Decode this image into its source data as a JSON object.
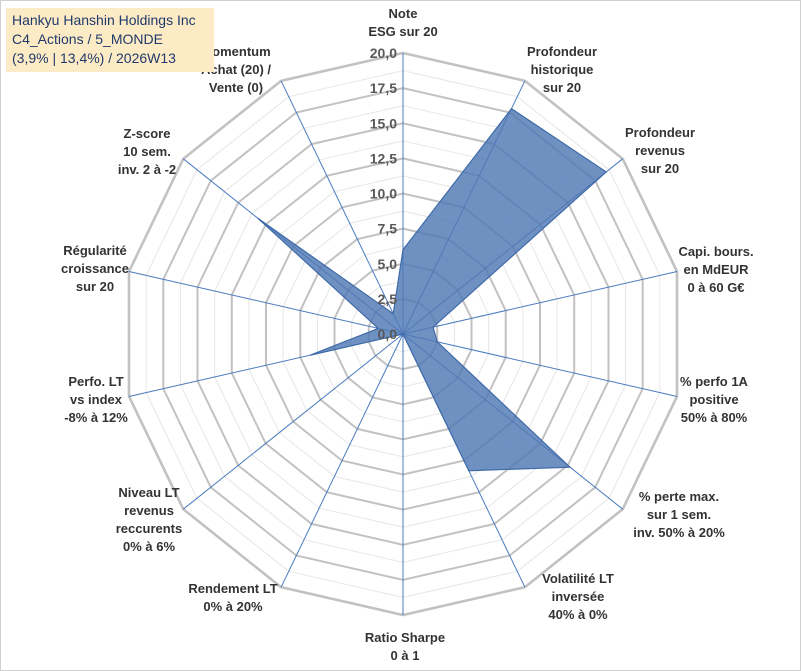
{
  "title_box": {
    "line1": "Hankyu Hanshin Holdings Inc",
    "line2": "C4_Actions / 5_MONDE",
    "line3": "(3,9% | 13,4%) / 2026W13"
  },
  "chart_data": {
    "type": "radar",
    "title": "Hankyu Hanshin Holdings Inc",
    "rlim": [
      0,
      20
    ],
    "ticks": [
      "0,0",
      "2,5",
      "5,0",
      "7,5",
      "10,0",
      "12,5",
      "15,0",
      "17,5",
      "20,0"
    ],
    "grid": true,
    "fill_color": "#4f79b5",
    "grid_color": "#c8c8c8",
    "axis_line_color": "#4a7bc0",
    "categories": [
      {
        "lines": [
          "Note",
          "ESG sur 20"
        ]
      },
      {
        "lines": [
          "Profondeur",
          "historique",
          "sur 20"
        ]
      },
      {
        "lines": [
          "Profondeur",
          "revenus",
          "sur 20"
        ]
      },
      {
        "lines": [
          "Capi. bours.",
          "en MdEUR",
          "0 à 60 G€"
        ]
      },
      {
        "lines": [
          "% perfo 1A",
          "positive",
          "50% à 80%"
        ]
      },
      {
        "lines": [
          "% perte max.",
          "sur 1 sem.",
          "inv. 50% à 20%"
        ]
      },
      {
        "lines": [
          "Volatilité LT",
          "inversée",
          "40% à 0%"
        ]
      },
      {
        "lines": [
          "Ratio Sharpe",
          "0 à 1"
        ]
      },
      {
        "lines": [
          "Rendement LT",
          "0% à 20%"
        ]
      },
      {
        "lines": [
          "Niveau LT",
          "revenus",
          "reccurents",
          "0% à 6%"
        ]
      },
      {
        "lines": [
          "Perfo. LT",
          "vs index",
          "-8% à 12%"
        ]
      },
      {
        "lines": [
          "Régularité",
          "croissance",
          "sur 20"
        ]
      },
      {
        "lines": [
          "Z-score",
          "10 sem.",
          "inv. 2 à -2"
        ]
      },
      {
        "lines": [
          "Momentum",
          "Achat (20) /",
          "Vente (0)"
        ]
      }
    ],
    "values": [
      6.0,
      17.8,
      18.5,
      2.2,
      2.5,
      15.2,
      10.8,
      0.0,
      0.0,
      0.0,
      6.8,
      1.8,
      13.2,
      1.6
    ]
  }
}
